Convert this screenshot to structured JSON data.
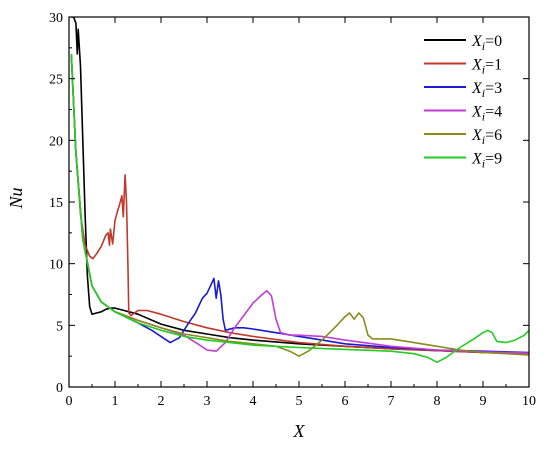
{
  "chart_data": {
    "type": "line",
    "xlabel": "X",
    "ylabel": "Nu",
    "xlim": [
      0,
      10
    ],
    "ylim": [
      0,
      30
    ],
    "xticks": [
      0,
      1,
      2,
      3,
      4,
      5,
      6,
      7,
      8,
      9,
      10
    ],
    "yticks": [
      0,
      5,
      10,
      15,
      20,
      25,
      30
    ],
    "grid": false,
    "legend_position": "top-right",
    "legend_prefix": "X",
    "legend_subscript": "i",
    "series": [
      {
        "name": "=0",
        "color": "#000000",
        "points": [
          [
            0.05,
            30
          ],
          [
            0.1,
            30
          ],
          [
            0.15,
            29.5
          ],
          [
            0.18,
            27
          ],
          [
            0.2,
            29
          ],
          [
            0.25,
            26
          ],
          [
            0.3,
            20
          ],
          [
            0.35,
            14
          ],
          [
            0.4,
            9
          ],
          [
            0.45,
            6.5
          ],
          [
            0.5,
            5.9
          ],
          [
            0.6,
            6.0
          ],
          [
            0.7,
            6.1
          ],
          [
            0.8,
            6.3
          ],
          [
            0.9,
            6.4
          ],
          [
            1.0,
            6.4
          ],
          [
            1.2,
            6.2
          ],
          [
            1.5,
            5.9
          ],
          [
            2.0,
            5.1
          ],
          [
            2.5,
            4.6
          ],
          [
            3.0,
            4.3
          ],
          [
            3.5,
            4.0
          ],
          [
            4.0,
            3.8
          ],
          [
            5.0,
            3.5
          ],
          [
            6.0,
            3.3
          ],
          [
            7.0,
            3.1
          ],
          [
            8.0,
            2.95
          ],
          [
            9.0,
            2.8
          ],
          [
            10.0,
            2.7
          ]
        ]
      },
      {
        "name": "=1",
        "color": "#c0392b",
        "points": [
          [
            0.05,
            27
          ],
          [
            0.15,
            19
          ],
          [
            0.25,
            14
          ],
          [
            0.35,
            11.5
          ],
          [
            0.45,
            10.6
          ],
          [
            0.52,
            10.4
          ],
          [
            0.6,
            10.8
          ],
          [
            0.7,
            11.4
          ],
          [
            0.8,
            12.3
          ],
          [
            0.85,
            12.5
          ],
          [
            0.88,
            11.5
          ],
          [
            0.9,
            12.8
          ],
          [
            0.95,
            11.6
          ],
          [
            1.0,
            13.5
          ],
          [
            1.05,
            14.2
          ],
          [
            1.1,
            14.8
          ],
          [
            1.15,
            15.5
          ],
          [
            1.18,
            13.8
          ],
          [
            1.22,
            17.2
          ],
          [
            1.25,
            15.0
          ],
          [
            1.28,
            10.0
          ],
          [
            1.3,
            6.0
          ],
          [
            1.35,
            5.8
          ],
          [
            1.5,
            6.2
          ],
          [
            1.7,
            6.2
          ],
          [
            2.0,
            5.9
          ],
          [
            2.5,
            5.3
          ],
          [
            3.0,
            4.8
          ],
          [
            3.5,
            4.4
          ],
          [
            4.0,
            4.1
          ],
          [
            5.0,
            3.6
          ],
          [
            6.0,
            3.3
          ],
          [
            7.0,
            3.1
          ],
          [
            8.0,
            2.95
          ],
          [
            9.0,
            2.8
          ],
          [
            10.0,
            2.7
          ]
        ]
      },
      {
        "name": "=3",
        "color": "#1a1ad4",
        "points": [
          [
            0.05,
            27
          ],
          [
            0.15,
            19
          ],
          [
            0.3,
            12
          ],
          [
            0.5,
            8.2
          ],
          [
            0.7,
            6.9
          ],
          [
            1.0,
            6.1
          ],
          [
            1.5,
            5.2
          ],
          [
            1.8,
            4.6
          ],
          [
            2.0,
            4.1
          ],
          [
            2.2,
            3.6
          ],
          [
            2.4,
            4.0
          ],
          [
            2.6,
            5.2
          ],
          [
            2.75,
            6.0
          ],
          [
            2.9,
            7.2
          ],
          [
            3.0,
            7.6
          ],
          [
            3.1,
            8.4
          ],
          [
            3.15,
            8.8
          ],
          [
            3.2,
            7.2
          ],
          [
            3.25,
            8.6
          ],
          [
            3.3,
            7.5
          ],
          [
            3.35,
            5.5
          ],
          [
            3.4,
            4.6
          ],
          [
            3.6,
            4.8
          ],
          [
            3.8,
            4.8
          ],
          [
            4.0,
            4.7
          ],
          [
            4.5,
            4.4
          ],
          [
            5.0,
            4.1
          ],
          [
            5.5,
            3.8
          ],
          [
            6.0,
            3.5
          ],
          [
            7.0,
            3.2
          ],
          [
            8.0,
            3.0
          ],
          [
            9.0,
            2.9
          ],
          [
            10.0,
            2.8
          ]
        ]
      },
      {
        "name": "=4",
        "color": "#c13dd6",
        "points": [
          [
            0.05,
            27
          ],
          [
            0.15,
            19
          ],
          [
            0.3,
            12
          ],
          [
            0.5,
            8.2
          ],
          [
            0.7,
            6.9
          ],
          [
            1.0,
            6.1
          ],
          [
            1.5,
            5.4
          ],
          [
            2.0,
            4.8
          ],
          [
            2.5,
            4.2
          ],
          [
            2.8,
            3.5
          ],
          [
            3.0,
            3.0
          ],
          [
            3.2,
            2.9
          ],
          [
            3.4,
            3.6
          ],
          [
            3.6,
            4.8
          ],
          [
            3.8,
            5.8
          ],
          [
            4.0,
            6.8
          ],
          [
            4.2,
            7.5
          ],
          [
            4.3,
            7.8
          ],
          [
            4.4,
            7.4
          ],
          [
            4.5,
            5.5
          ],
          [
            4.6,
            4.4
          ],
          [
            4.8,
            4.2
          ],
          [
            5.0,
            4.2
          ],
          [
            5.5,
            4.1
          ],
          [
            6.0,
            3.8
          ],
          [
            7.0,
            3.3
          ],
          [
            8.0,
            3.0
          ],
          [
            9.0,
            2.85
          ],
          [
            10.0,
            2.75
          ]
        ]
      },
      {
        "name": "=6",
        "color": "#8b8b1a",
        "points": [
          [
            0.05,
            27
          ],
          [
            0.15,
            19
          ],
          [
            0.3,
            12
          ],
          [
            0.5,
            8.2
          ],
          [
            0.7,
            6.9
          ],
          [
            1.0,
            6.1
          ],
          [
            1.5,
            5.4
          ],
          [
            2.0,
            4.8
          ],
          [
            2.5,
            4.3
          ],
          [
            3.0,
            4.0
          ],
          [
            3.5,
            3.7
          ],
          [
            4.0,
            3.5
          ],
          [
            4.5,
            3.3
          ],
          [
            4.8,
            2.9
          ],
          [
            5.0,
            2.5
          ],
          [
            5.2,
            2.9
          ],
          [
            5.5,
            3.8
          ],
          [
            5.8,
            4.9
          ],
          [
            6.0,
            5.7
          ],
          [
            6.1,
            6.0
          ],
          [
            6.2,
            5.5
          ],
          [
            6.3,
            6.0
          ],
          [
            6.4,
            5.6
          ],
          [
            6.5,
            4.2
          ],
          [
            6.6,
            3.9
          ],
          [
            7.0,
            3.9
          ],
          [
            7.5,
            3.6
          ],
          [
            8.0,
            3.3
          ],
          [
            8.5,
            3.0
          ],
          [
            9.0,
            2.8
          ],
          [
            10.0,
            2.6
          ]
        ]
      },
      {
        "name": "=9",
        "color": "#22cc22",
        "points": [
          [
            0.05,
            27
          ],
          [
            0.15,
            19
          ],
          [
            0.3,
            12
          ],
          [
            0.5,
            8.2
          ],
          [
            0.7,
            6.9
          ],
          [
            1.0,
            6.1
          ],
          [
            1.5,
            5.2
          ],
          [
            2.0,
            4.6
          ],
          [
            2.5,
            4.1
          ],
          [
            3.0,
            3.8
          ],
          [
            3.5,
            3.6
          ],
          [
            4.0,
            3.4
          ],
          [
            5.0,
            3.2
          ],
          [
            6.0,
            3.05
          ],
          [
            7.0,
            2.9
          ],
          [
            7.5,
            2.7
          ],
          [
            7.8,
            2.4
          ],
          [
            8.0,
            2.0
          ],
          [
            8.2,
            2.4
          ],
          [
            8.5,
            3.2
          ],
          [
            8.8,
            3.9
          ],
          [
            9.0,
            4.4
          ],
          [
            9.1,
            4.6
          ],
          [
            9.2,
            4.4
          ],
          [
            9.3,
            3.7
          ],
          [
            9.5,
            3.6
          ],
          [
            9.7,
            3.8
          ],
          [
            9.9,
            4.2
          ],
          [
            10.0,
            4.6
          ]
        ]
      }
    ]
  }
}
